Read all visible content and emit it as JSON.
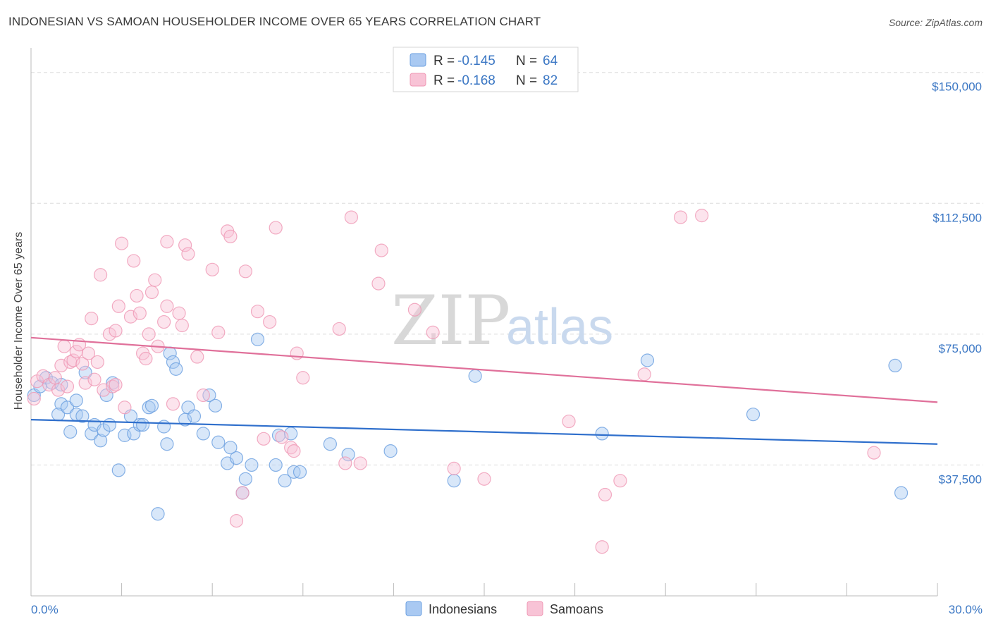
{
  "title": "INDONESIAN VS SAMOAN HOUSEHOLDER INCOME OVER 65 YEARS CORRELATION CHART",
  "source": "Source: ZipAtlas.com",
  "watermark": {
    "zip": "ZIP",
    "atlas": "atlas"
  },
  "legend": [
    {
      "r_label": "R =",
      "r_value": "-0.145",
      "n_label": "N =",
      "n_value": "64"
    },
    {
      "r_label": "R =",
      "r_value": "-0.168",
      "n_label": "N =",
      "n_value": "82"
    }
  ],
  "chart_data": {
    "type": "scatter",
    "title": "INDONESIAN VS SAMOAN HOUSEHOLDER INCOME OVER 65 YEARS CORRELATION CHART",
    "xlabel": "",
    "ylabel": "Householder Income Over 65 years",
    "xlim": [
      0,
      30
    ],
    "ylim": [
      0,
      155000
    ],
    "x_tick_labels": [
      "0.0%",
      "30.0%"
    ],
    "y_ticks": [
      37500,
      75000,
      112500,
      150000
    ],
    "y_tick_labels": [
      "$37,500",
      "$75,000",
      "$112,500",
      "$150,000"
    ],
    "legend_position": "top-center",
    "grid": true,
    "series": [
      {
        "name": "Indonesians",
        "color": "#6a9fe0",
        "fill": "#a9c9f2",
        "trend": {
          "x": [
            0,
            30
          ],
          "y": [
            50500,
            43500
          ],
          "color": "#2f6fcc"
        },
        "points": [
          [
            0.1,
            57500
          ],
          [
            0.3,
            60000
          ],
          [
            0.5,
            62500
          ],
          [
            0.7,
            61000
          ],
          [
            1.0,
            55000
          ],
          [
            0.9,
            52000
          ],
          [
            1.2,
            54000
          ],
          [
            1.3,
            47000
          ],
          [
            1.5,
            52000
          ],
          [
            1.5,
            56000
          ],
          [
            1.7,
            51500
          ],
          [
            1.8,
            64000
          ],
          [
            2.0,
            46500
          ],
          [
            2.1,
            49000
          ],
          [
            2.3,
            44500
          ],
          [
            2.4,
            47500
          ],
          [
            2.5,
            57500
          ],
          [
            2.6,
            49000
          ],
          [
            2.7,
            61000
          ],
          [
            2.9,
            36000
          ],
          [
            3.1,
            46000
          ],
          [
            3.3,
            51500
          ],
          [
            3.4,
            46500
          ],
          [
            3.6,
            49000
          ],
          [
            3.7,
            49000
          ],
          [
            3.9,
            54000
          ],
          [
            4.0,
            54500
          ],
          [
            4.2,
            23500
          ],
          [
            4.4,
            48500
          ],
          [
            4.5,
            43500
          ],
          [
            4.6,
            69500
          ],
          [
            4.7,
            67000
          ],
          [
            4.8,
            65000
          ],
          [
            5.1,
            50500
          ],
          [
            5.2,
            54000
          ],
          [
            5.4,
            51500
          ],
          [
            5.7,
            46500
          ],
          [
            5.9,
            57500
          ],
          [
            6.1,
            54500
          ],
          [
            6.2,
            44000
          ],
          [
            6.5,
            38000
          ],
          [
            6.6,
            42500
          ],
          [
            6.8,
            39500
          ],
          [
            7.0,
            29500
          ],
          [
            7.1,
            33500
          ],
          [
            7.3,
            37500
          ],
          [
            7.5,
            73500
          ],
          [
            8.1,
            37500
          ],
          [
            8.2,
            46000
          ],
          [
            8.4,
            33000
          ],
          [
            8.6,
            46500
          ],
          [
            8.7,
            35500
          ],
          [
            8.9,
            35500
          ],
          [
            9.9,
            43500
          ],
          [
            10.5,
            40500
          ],
          [
            11.9,
            41500
          ],
          [
            14.0,
            33000
          ],
          [
            14.7,
            63000
          ],
          [
            18.9,
            46500
          ],
          [
            20.4,
            67500
          ],
          [
            23.9,
            52000
          ],
          [
            28.6,
            66000
          ],
          [
            28.8,
            29500
          ],
          [
            1.0,
            60500
          ]
        ]
      },
      {
        "name": "Samoans",
        "color": "#ef97b4",
        "fill": "#f8c3d6",
        "trend": {
          "x": [
            0,
            30
          ],
          "y": [
            74000,
            55500
          ],
          "color": "#e0709a"
        },
        "points": [
          [
            0.1,
            56500
          ],
          [
            0.2,
            61500
          ],
          [
            0.4,
            63000
          ],
          [
            0.6,
            60500
          ],
          [
            0.8,
            62500
          ],
          [
            0.9,
            59000
          ],
          [
            1.0,
            66000
          ],
          [
            1.1,
            71500
          ],
          [
            1.2,
            60000
          ],
          [
            1.3,
            67000
          ],
          [
            1.4,
            67500
          ],
          [
            1.5,
            70000
          ],
          [
            1.6,
            72000
          ],
          [
            1.7,
            66500
          ],
          [
            1.8,
            61000
          ],
          [
            1.9,
            69500
          ],
          [
            2.0,
            79500
          ],
          [
            2.1,
            62000
          ],
          [
            2.2,
            67000
          ],
          [
            2.3,
            92000
          ],
          [
            2.4,
            59000
          ],
          [
            2.6,
            75000
          ],
          [
            2.7,
            60000
          ],
          [
            2.8,
            76000
          ],
          [
            2.9,
            83000
          ],
          [
            3.0,
            101000
          ],
          [
            3.1,
            54000
          ],
          [
            3.3,
            80000
          ],
          [
            3.4,
            96000
          ],
          [
            3.5,
            86000
          ],
          [
            3.6,
            81000
          ],
          [
            3.7,
            69500
          ],
          [
            3.8,
            68000
          ],
          [
            3.9,
            75000
          ],
          [
            4.0,
            87000
          ],
          [
            4.1,
            90500
          ],
          [
            4.2,
            71500
          ],
          [
            4.4,
            78500
          ],
          [
            4.5,
            83000
          ],
          [
            4.5,
            101500
          ],
          [
            4.7,
            55000
          ],
          [
            4.9,
            81000
          ],
          [
            5.0,
            77500
          ],
          [
            5.1,
            100500
          ],
          [
            5.2,
            98000
          ],
          [
            5.5,
            68500
          ],
          [
            5.7,
            57500
          ],
          [
            6.0,
            93500
          ],
          [
            6.2,
            75500
          ],
          [
            6.5,
            104500
          ],
          [
            6.6,
            103000
          ],
          [
            6.8,
            21500
          ],
          [
            7.0,
            29500
          ],
          [
            7.1,
            93000
          ],
          [
            7.5,
            81500
          ],
          [
            7.7,
            45000
          ],
          [
            7.9,
            78500
          ],
          [
            8.1,
            105500
          ],
          [
            8.3,
            45500
          ],
          [
            8.6,
            42500
          ],
          [
            8.7,
            41500
          ],
          [
            8.8,
            69500
          ],
          [
            9.0,
            62500
          ],
          [
            10.2,
            76500
          ],
          [
            10.4,
            38000
          ],
          [
            10.6,
            108500
          ],
          [
            10.9,
            38000
          ],
          [
            11.5,
            89500
          ],
          [
            11.6,
            99000
          ],
          [
            12.7,
            82000
          ],
          [
            13.3,
            75500
          ],
          [
            14.0,
            36500
          ],
          [
            15.0,
            33500
          ],
          [
            17.8,
            50000
          ],
          [
            18.9,
            14000
          ],
          [
            19.0,
            29000
          ],
          [
            19.5,
            33000
          ],
          [
            20.3,
            63500
          ],
          [
            21.5,
            108500
          ],
          [
            22.2,
            109000
          ],
          [
            27.9,
            41000
          ],
          [
            2.8,
            60500
          ]
        ]
      }
    ]
  }
}
